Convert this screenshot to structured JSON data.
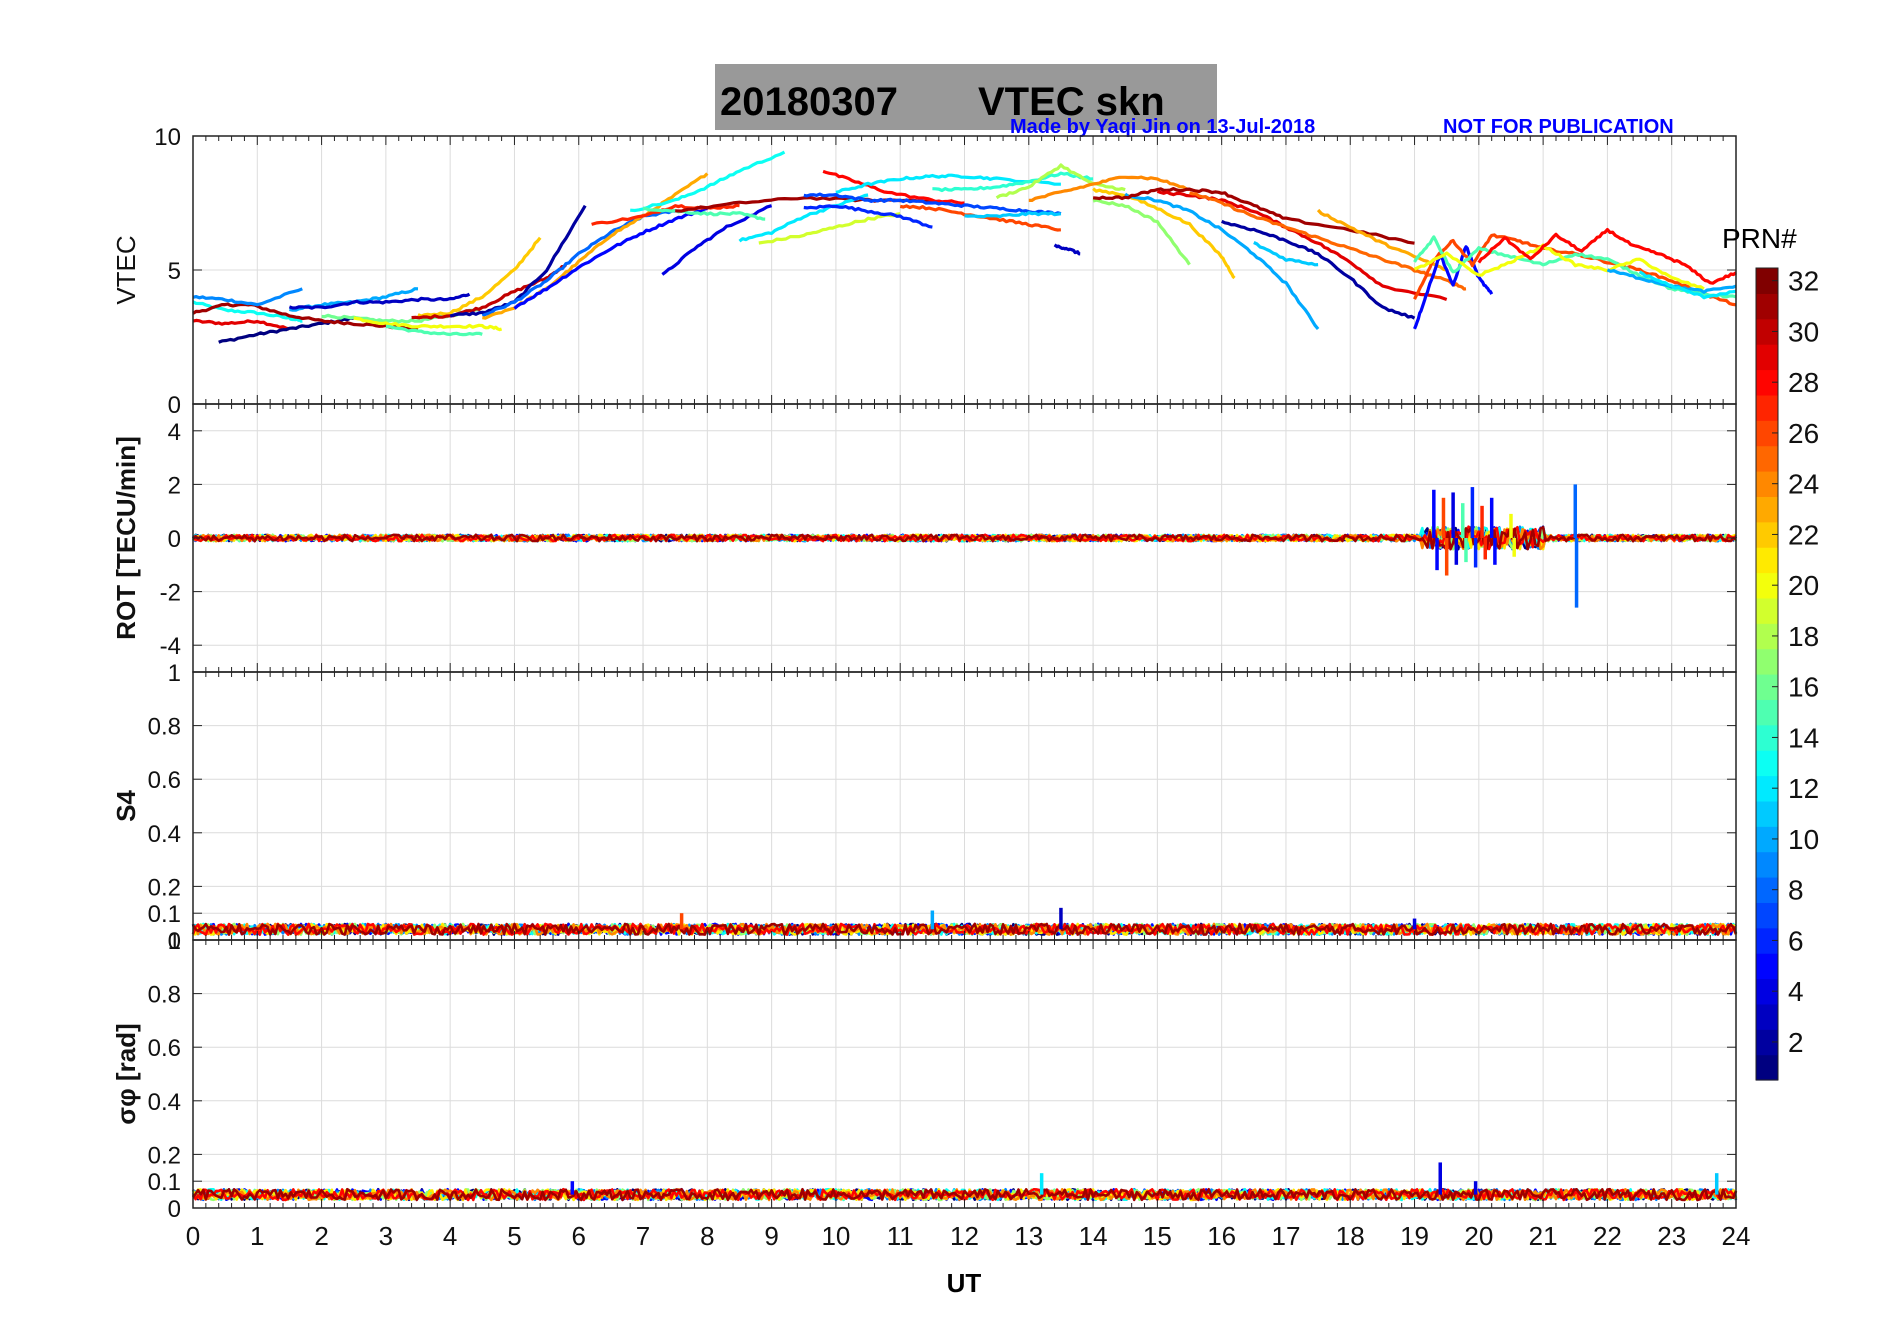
{
  "header": {
    "date": "20180307",
    "title": "VTEC skn",
    "credit": "Made by Yaqi Jin on 13-Jul-2018",
    "notice": "NOT FOR PUBLICATION"
  },
  "colorbar": {
    "label": "PRN#",
    "ticks": [
      "2",
      "4",
      "6",
      "8",
      "10",
      "12",
      "14",
      "16",
      "18",
      "20",
      "22",
      "24",
      "26",
      "28",
      "30",
      "32"
    ],
    "range": [
      1,
      32
    ],
    "colormap": "jet"
  },
  "xaxis": {
    "label": "UT",
    "ticks": [
      "0",
      "1",
      "2",
      "3",
      "4",
      "5",
      "6",
      "7",
      "8",
      "9",
      "10",
      "11",
      "12",
      "13",
      "14",
      "15",
      "16",
      "17",
      "18",
      "19",
      "20",
      "21",
      "22",
      "23",
      "24"
    ],
    "range": [
      0,
      24
    ]
  },
  "colors": {
    "title_bg": "#999999",
    "credit": "#0000ff",
    "grid": "#d9d9d9"
  },
  "chart_data": [
    {
      "type": "line",
      "panel": "vtec",
      "ylabel": "VTEC",
      "ylim": [
        0,
        10
      ],
      "yticks": [
        "0",
        "5",
        "10"
      ],
      "grid": true,
      "series": [
        {
          "prn": 13,
          "x": [
            0.0,
            0.5,
            1.0,
            1.5,
            1.7
          ],
          "y": [
            3.8,
            3.5,
            3.4,
            3.2,
            3.1
          ]
        },
        {
          "prn": 29,
          "x": [
            0.0,
            0.5,
            1.0,
            1.5
          ],
          "y": [
            3.1,
            3.0,
            3.1,
            2.8
          ]
        },
        {
          "prn": 1,
          "x": [
            0.4,
            1.0,
            1.5,
            2.0,
            2.5
          ],
          "y": [
            2.3,
            2.6,
            2.8,
            3.0,
            3.2
          ]
        },
        {
          "prn": 31,
          "x": [
            0.0,
            0.5,
            0.9,
            1.5,
            2.0,
            2.5,
            3.0,
            3.5
          ],
          "y": [
            3.4,
            3.7,
            3.7,
            3.3,
            3.1,
            3.0,
            2.9,
            2.8
          ]
        },
        {
          "prn": 9,
          "x": [
            0.0,
            0.5,
            1.0,
            1.7
          ],
          "y": [
            4.0,
            3.9,
            3.7,
            4.3
          ]
        },
        {
          "prn": 10,
          "x": [
            1.5,
            2.0,
            2.5,
            3.0,
            3.5
          ],
          "y": [
            3.5,
            3.7,
            3.8,
            4.0,
            4.3
          ]
        },
        {
          "prn": 3,
          "x": [
            1.5,
            2.0,
            2.5,
            3.0,
            3.5,
            4.0,
            4.3
          ],
          "y": [
            3.6,
            3.6,
            3.8,
            3.8,
            3.9,
            3.9,
            4.1
          ]
        },
        {
          "prn": 16,
          "x": [
            2.0,
            2.5,
            3.0,
            3.5,
            4.0,
            4.5
          ],
          "y": [
            3.3,
            3.2,
            3.1,
            3.1,
            3.3,
            3.6
          ]
        },
        {
          "prn": 20,
          "x": [
            2.5,
            3.0,
            3.5,
            4.0,
            4.5,
            4.8
          ],
          "y": [
            3.2,
            3.0,
            2.9,
            2.9,
            2.9,
            2.8
          ]
        },
        {
          "prn": 15,
          "x": [
            3.0,
            3.5,
            4.0,
            4.5
          ],
          "y": [
            2.9,
            2.7,
            2.6,
            2.6
          ]
        },
        {
          "prn": 22,
          "x": [
            3.5,
            4.0,
            4.5,
            5.0,
            5.4
          ],
          "y": [
            3.3,
            3.4,
            4.0,
            5.0,
            6.2
          ]
        },
        {
          "prn": 30,
          "x": [
            3.4,
            4.0,
            4.5,
            5.0,
            5.5,
            5.8
          ],
          "y": [
            3.2,
            3.3,
            3.6,
            4.2,
            4.7,
            5.2
          ]
        },
        {
          "prn": 2,
          "x": [
            4.0,
            4.5,
            5.0,
            5.5,
            6.1
          ],
          "y": [
            3.3,
            3.4,
            3.8,
            5.0,
            7.4
          ]
        },
        {
          "prn": 8,
          "x": [
            4.5,
            5.0,
            5.5,
            6.0,
            6.5,
            7.0,
            7.5
          ],
          "y": [
            3.3,
            3.8,
            4.6,
            5.6,
            6.4,
            7.0,
            7.2
          ]
        },
        {
          "prn": 23,
          "x": [
            4.5,
            5.0,
            5.5,
            6.0,
            6.5,
            7.0,
            7.5,
            8.0
          ],
          "y": [
            3.2,
            3.6,
            4.3,
            5.3,
            6.3,
            7.0,
            7.8,
            8.6
          ]
        },
        {
          "prn": 5,
          "x": [
            5.0,
            5.5,
            6.0,
            6.5,
            7.0,
            7.5,
            8.0
          ],
          "y": [
            3.6,
            4.3,
            5.1,
            5.8,
            6.4,
            6.9,
            7.3
          ]
        },
        {
          "prn": 27,
          "x": [
            6.2,
            7.0,
            7.5,
            8.0,
            8.5
          ],
          "y": [
            6.7,
            7.0,
            7.4,
            7.3,
            7.4
          ]
        },
        {
          "prn": 13,
          "x": [
            6.8,
            7.5,
            8.0,
            8.5,
            9.2
          ],
          "y": [
            7.2,
            7.6,
            8.1,
            8.7,
            9.4
          ]
        },
        {
          "prn": 4,
          "x": [
            7.3,
            7.8,
            8.3,
            9.0
          ],
          "y": [
            4.8,
            5.8,
            6.6,
            7.4
          ]
        },
        {
          "prn": 15,
          "x": [
            7.0,
            7.5,
            8.0,
            8.5,
            8.9
          ],
          "y": [
            7.3,
            7.2,
            7.1,
            7.1,
            6.9
          ]
        },
        {
          "prn": 31,
          "x": [
            7.5,
            8.5,
            9.5,
            10.5,
            11.5
          ],
          "y": [
            7.2,
            7.5,
            7.7,
            7.6,
            7.6
          ]
        },
        {
          "prn": 12,
          "x": [
            8.5,
            9.0,
            9.5,
            10.0,
            10.5
          ],
          "y": [
            6.1,
            6.4,
            7.0,
            7.4,
            7.8
          ]
        },
        {
          "prn": 19,
          "x": [
            8.8,
            9.5,
            10.0,
            10.5,
            11.0
          ],
          "y": [
            6.0,
            6.3,
            6.6,
            6.9,
            7.1
          ]
        },
        {
          "prn": 6,
          "x": [
            9.5,
            10.0,
            10.5,
            11.0,
            11.5
          ],
          "y": [
            7.3,
            7.4,
            7.2,
            7.0,
            6.6
          ]
        },
        {
          "prn": 28,
          "x": [
            9.8,
            10.3,
            10.8,
            11.5,
            12.0
          ],
          "y": [
            8.7,
            8.3,
            7.9,
            7.6,
            7.5
          ]
        },
        {
          "prn": 12,
          "x": [
            10.0,
            10.5,
            11.0,
            11.5,
            12.0,
            12.5,
            13.5
          ],
          "y": [
            7.9,
            8.2,
            8.4,
            8.5,
            8.5,
            8.4,
            8.2
          ]
        },
        {
          "prn": 7,
          "x": [
            9.5,
            10.0,
            10.5,
            11.0,
            11.5,
            12.0,
            12.5,
            13.0,
            13.5
          ],
          "y": [
            7.8,
            7.8,
            7.6,
            7.6,
            7.5,
            7.4,
            7.3,
            7.2,
            7.1
          ]
        },
        {
          "prn": 26,
          "x": [
            11.0,
            11.5,
            12.0,
            12.5,
            13.0,
            13.5
          ],
          "y": [
            7.4,
            7.3,
            7.1,
            6.9,
            6.7,
            6.5
          ]
        },
        {
          "prn": 14,
          "x": [
            11.5,
            12.0,
            12.5,
            13.0,
            13.5,
            14.0
          ],
          "y": [
            8.0,
            8.0,
            8.1,
            8.3,
            8.6,
            8.4
          ]
        },
        {
          "prn": 18,
          "x": [
            12.5,
            13.0,
            13.5,
            14.0,
            14.5
          ],
          "y": [
            7.7,
            8.1,
            8.9,
            8.2,
            8.0
          ]
        },
        {
          "prn": 11,
          "x": [
            12.0,
            12.5,
            13.0,
            13.5
          ],
          "y": [
            7.0,
            7.0,
            7.1,
            7.1
          ]
        },
        {
          "prn": 3,
          "x": [
            13.4,
            13.6,
            13.8
          ],
          "y": [
            5.9,
            5.8,
            5.6
          ]
        },
        {
          "prn": 24,
          "x": [
            13.0,
            13.5,
            14.0,
            14.5,
            15.0,
            15.5
          ],
          "y": [
            7.6,
            7.9,
            8.2,
            8.5,
            8.4,
            8.0
          ]
        },
        {
          "prn": 22,
          "x": [
            14.0,
            14.5,
            15.0,
            15.5,
            16.0,
            16.2
          ],
          "y": [
            8.0,
            7.8,
            7.3,
            6.7,
            5.5,
            4.7
          ]
        },
        {
          "prn": 17,
          "x": [
            14.0,
            14.5,
            15.0,
            15.5
          ],
          "y": [
            7.6,
            7.4,
            6.8,
            5.2
          ]
        },
        {
          "prn": 10,
          "x": [
            14.5,
            15.0,
            15.5,
            16.0,
            16.5,
            17.0,
            17.5
          ],
          "y": [
            7.8,
            7.6,
            7.2,
            6.5,
            5.6,
            4.5,
            2.8
          ]
        },
        {
          "prn": 31,
          "x": [
            14.0,
            14.5,
            15.0,
            15.5,
            16.0,
            16.5,
            17.0,
            18.0,
            19.0
          ],
          "y": [
            7.7,
            7.7,
            8.0,
            8.0,
            7.9,
            7.4,
            6.9,
            6.5,
            6.0
          ]
        },
        {
          "prn": 29,
          "x": [
            15.0,
            15.5,
            16.0,
            16.5,
            17.0,
            17.5,
            18.0,
            18.5,
            19.5
          ],
          "y": [
            7.9,
            7.8,
            7.6,
            7.2,
            6.6,
            6.0,
            5.3,
            4.4,
            3.9
          ]
        },
        {
          "prn": 25,
          "x": [
            15.5,
            16.0,
            16.5,
            17.0,
            17.5,
            18.0,
            18.5,
            19.0,
            19.5,
            19.8
          ],
          "y": [
            7.9,
            7.5,
            7.0,
            6.6,
            6.2,
            5.8,
            5.4,
            5.0,
            4.6,
            4.3
          ]
        },
        {
          "prn": 2,
          "x": [
            16.0,
            16.5,
            17.0,
            17.5,
            18.0,
            18.5,
            19.0
          ],
          "y": [
            6.8,
            6.5,
            6.1,
            5.6,
            4.7,
            3.6,
            3.2
          ]
        },
        {
          "prn": 23,
          "x": [
            17.5,
            18.0,
            18.5,
            19.0,
            19.5
          ],
          "y": [
            7.2,
            6.6,
            6.0,
            5.5,
            5.0
          ]
        },
        {
          "prn": 11,
          "x": [
            16.5,
            17.0,
            17.5
          ],
          "y": [
            6.0,
            5.4,
            5.2
          ]
        },
        {
          "prn": 5,
          "x": [
            19.0,
            19.2,
            19.4,
            19.6,
            19.8,
            20.0,
            20.2
          ],
          "y": [
            2.8,
            4.2,
            5.6,
            4.4,
            5.9,
            4.7,
            4.1
          ]
        },
        {
          "prn": 26,
          "x": [
            19.0,
            19.3,
            19.6,
            19.9,
            20.2,
            20.6,
            21.0,
            21.5,
            22.0,
            22.5,
            23.0,
            23.5,
            24.0
          ],
          "y": [
            3.9,
            5.4,
            6.1,
            5.2,
            6.3,
            6.1,
            5.8,
            5.6,
            5.3,
            5.0,
            4.6,
            4.1,
            3.7
          ]
        },
        {
          "prn": 15,
          "x": [
            19.0,
            19.3,
            19.6,
            20.0,
            20.5,
            21.0,
            21.5,
            22.0,
            22.5,
            23.0,
            23.5,
            24.0
          ],
          "y": [
            5.3,
            6.2,
            4.9,
            5.8,
            5.5,
            5.2,
            5.6,
            5.4,
            4.8,
            4.3,
            4.1,
            4.0
          ]
        },
        {
          "prn": 20,
          "x": [
            19.0,
            19.5,
            20.0,
            20.5,
            21.0,
            21.5,
            22.0,
            22.5,
            23.0,
            23.5
          ],
          "y": [
            5.0,
            5.6,
            4.8,
            5.3,
            5.9,
            5.2,
            5.0,
            5.4,
            4.7,
            4.3
          ]
        },
        {
          "prn": 28,
          "x": [
            20.0,
            20.4,
            20.8,
            21.2,
            21.6,
            22.0,
            22.4,
            22.8,
            23.2,
            23.6,
            24.0
          ],
          "y": [
            5.3,
            6.2,
            5.4,
            6.3,
            5.7,
            6.5,
            5.9,
            5.6,
            5.2,
            4.5,
            4.9
          ]
        },
        {
          "prn": 10,
          "x": [
            22.0,
            22.5,
            23.0,
            23.5,
            24.0
          ],
          "y": [
            5.0,
            4.7,
            4.4,
            4.2,
            4.4
          ]
        },
        {
          "prn": 12,
          "x": [
            22.5,
            23.0,
            23.5,
            24.0
          ],
          "y": [
            4.9,
            4.4,
            4.0,
            4.2
          ]
        }
      ]
    },
    {
      "type": "line",
      "panel": "rot",
      "ylabel": "ROT [TECU/min]",
      "ylim": [
        -5,
        5
      ],
      "yticks": [
        "-4",
        "-2",
        "0",
        "2",
        "4"
      ],
      "grid": true,
      "baseline": 0,
      "noise_amplitude": 0.12,
      "spikes": [
        {
          "prn": 5,
          "x": 19.3,
          "y": 1.8
        },
        {
          "prn": 5,
          "x": 19.35,
          "y": -1.2
        },
        {
          "prn": 26,
          "x": 19.45,
          "y": 1.5
        },
        {
          "prn": 26,
          "x": 19.5,
          "y": -1.4
        },
        {
          "prn": 4,
          "x": 19.6,
          "y": 1.7
        },
        {
          "prn": 4,
          "x": 19.65,
          "y": -1.0
        },
        {
          "prn": 15,
          "x": 19.75,
          "y": 1.3
        },
        {
          "prn": 15,
          "x": 19.8,
          "y": -0.9
        },
        {
          "prn": 6,
          "x": 19.9,
          "y": 1.9
        },
        {
          "prn": 6,
          "x": 19.95,
          "y": -1.1
        },
        {
          "prn": 27,
          "x": 20.05,
          "y": 1.2
        },
        {
          "prn": 27,
          "x": 20.1,
          "y": -0.8
        },
        {
          "prn": 5,
          "x": 20.2,
          "y": 1.5
        },
        {
          "prn": 5,
          "x": 20.25,
          "y": -1.0
        },
        {
          "prn": 20,
          "x": 20.5,
          "y": 0.9
        },
        {
          "prn": 20,
          "x": 20.55,
          "y": -0.7
        },
        {
          "prn": 8,
          "x": 21.5,
          "y": 2.0
        },
        {
          "prn": 8,
          "x": 21.52,
          "y": -2.6
        }
      ]
    },
    {
      "type": "line",
      "panel": "s4",
      "ylabel": "S4",
      "ylim": [
        0,
        1
      ],
      "yticks": [
        "0",
        "0.1",
        "0.2",
        "0.4",
        "0.6",
        "0.8",
        "1"
      ],
      "grid": true,
      "baseline": 0.04,
      "noise_amplitude": 0.02,
      "spikes": [
        {
          "prn": 26,
          "x": 7.6,
          "y": 0.1
        },
        {
          "prn": 10,
          "x": 11.5,
          "y": 0.11
        },
        {
          "prn": 3,
          "x": 13.5,
          "y": 0.12
        },
        {
          "prn": 4,
          "x": 19.0,
          "y": 0.08
        }
      ]
    },
    {
      "type": "line",
      "panel": "sigma_phi",
      "ylabel": "σφ [rad]",
      "ylim": [
        0,
        1
      ],
      "yticks": [
        "0",
        "0.1",
        "0.2",
        "0.4",
        "0.6",
        "0.8",
        "1"
      ],
      "grid": true,
      "baseline": 0.05,
      "noise_amplitude": 0.02,
      "spikes": [
        {
          "prn": 4,
          "x": 19.4,
          "y": 0.17
        },
        {
          "prn": 12,
          "x": 13.2,
          "y": 0.13
        },
        {
          "prn": 11,
          "x": 23.7,
          "y": 0.13
        },
        {
          "prn": 5,
          "x": 5.9,
          "y": 0.1
        },
        {
          "prn": 4,
          "x": 19.95,
          "y": 0.1
        }
      ]
    }
  ]
}
